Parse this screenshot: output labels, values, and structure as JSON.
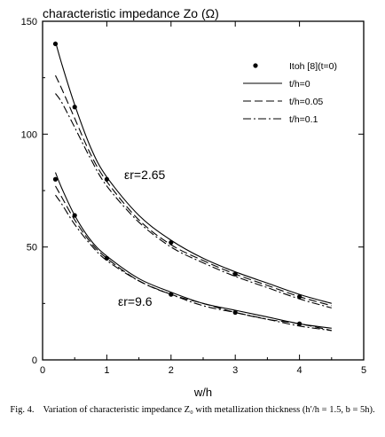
{
  "chart_data": {
    "type": "line",
    "title": "characteristic impedance Zo (Ω)",
    "xlabel": "w/h",
    "ylabel": "",
    "xlim": [
      0,
      5
    ],
    "ylim": [
      0,
      150
    ],
    "x_ticks": [
      "0",
      "1",
      "2",
      "3",
      "4",
      "5"
    ],
    "y_ticks": [
      "0",
      "50",
      "100",
      "150"
    ],
    "grid": false,
    "legend_position": "top-right",
    "legend": [
      "Itoh [8](t=0)",
      "t/h=0",
      "t/h=0.05",
      "t/h=0.1"
    ],
    "annotations": [
      "εr=2.65",
      "εr=9.6"
    ],
    "series": [
      {
        "name": "t/h=0",
        "group": "εr=2.65",
        "style": "solid",
        "x": [
          0.2,
          0.3,
          0.5,
          0.75,
          1.0,
          1.5,
          2.0,
          2.5,
          3.0,
          3.5,
          4.0,
          4.5
        ],
        "y": [
          141,
          131,
          113,
          94,
          81,
          64,
          53,
          45,
          39,
          34,
          29,
          25
        ]
      },
      {
        "name": "t/h=0.05",
        "group": "εr=2.65",
        "style": "dashed",
        "x": [
          0.2,
          0.3,
          0.5,
          0.75,
          1.0,
          1.5,
          2.0,
          2.5,
          3.0,
          3.5,
          4.0,
          4.5
        ],
        "y": [
          126,
          120,
          107,
          91,
          79,
          62,
          51,
          44,
          38,
          33,
          28,
          24
        ]
      },
      {
        "name": "t/h=0.1",
        "group": "εr=2.65",
        "style": "dashdot",
        "x": [
          0.2,
          0.3,
          0.5,
          0.75,
          1.0,
          1.5,
          2.0,
          2.5,
          3.0,
          3.5,
          4.0,
          4.5
        ],
        "y": [
          118,
          114,
          103,
          89,
          77,
          61,
          50,
          43,
          37,
          32,
          27,
          23
        ]
      },
      {
        "name": "t/h=0",
        "group": "εr=9.6",
        "style": "solid",
        "x": [
          0.2,
          0.3,
          0.5,
          0.75,
          1.0,
          1.5,
          2.0,
          2.5,
          3.0,
          3.5,
          4.0,
          4.5
        ],
        "y": [
          83,
          76,
          64,
          53,
          46,
          36,
          30,
          25,
          22,
          19,
          16,
          14
        ]
      },
      {
        "name": "t/h=0.05",
        "group": "εr=9.6",
        "style": "dashed",
        "x": [
          0.2,
          0.3,
          0.5,
          0.75,
          1.0,
          1.5,
          2.0,
          2.5,
          3.0,
          3.5,
          4.0,
          4.5
        ],
        "y": [
          77,
          72,
          62,
          52,
          45,
          35,
          29,
          25,
          21,
          18,
          16,
          13
        ]
      },
      {
        "name": "t/h=0.1",
        "group": "εr=9.6",
        "style": "dashdot",
        "x": [
          0.2,
          0.3,
          0.5,
          0.75,
          1.0,
          1.5,
          2.0,
          2.5,
          3.0,
          3.5,
          4.0,
          4.5
        ],
        "y": [
          73,
          69,
          60,
          51,
          44,
          35,
          29,
          24,
          21,
          18,
          15,
          13
        ]
      }
    ],
    "points": [
      {
        "name": "Itoh [8](t=0)",
        "group": "εr=2.65",
        "x": [
          0.2,
          0.5,
          1.0,
          2.0,
          3.0,
          4.0
        ],
        "y": [
          140,
          112,
          80,
          52,
          38,
          28
        ]
      },
      {
        "name": "Itoh [8](t=0)",
        "group": "εr=9.6",
        "x": [
          0.2,
          0.5,
          1.0,
          2.0,
          3.0,
          4.0
        ],
        "y": [
          80,
          64,
          45,
          29,
          21,
          16
        ]
      }
    ]
  },
  "caption": {
    "label": "Fig. 4.",
    "text": "Variation of characteristic impedance Z₀ with metallization thickness (h′/h = 1.5, b = 5h)."
  }
}
